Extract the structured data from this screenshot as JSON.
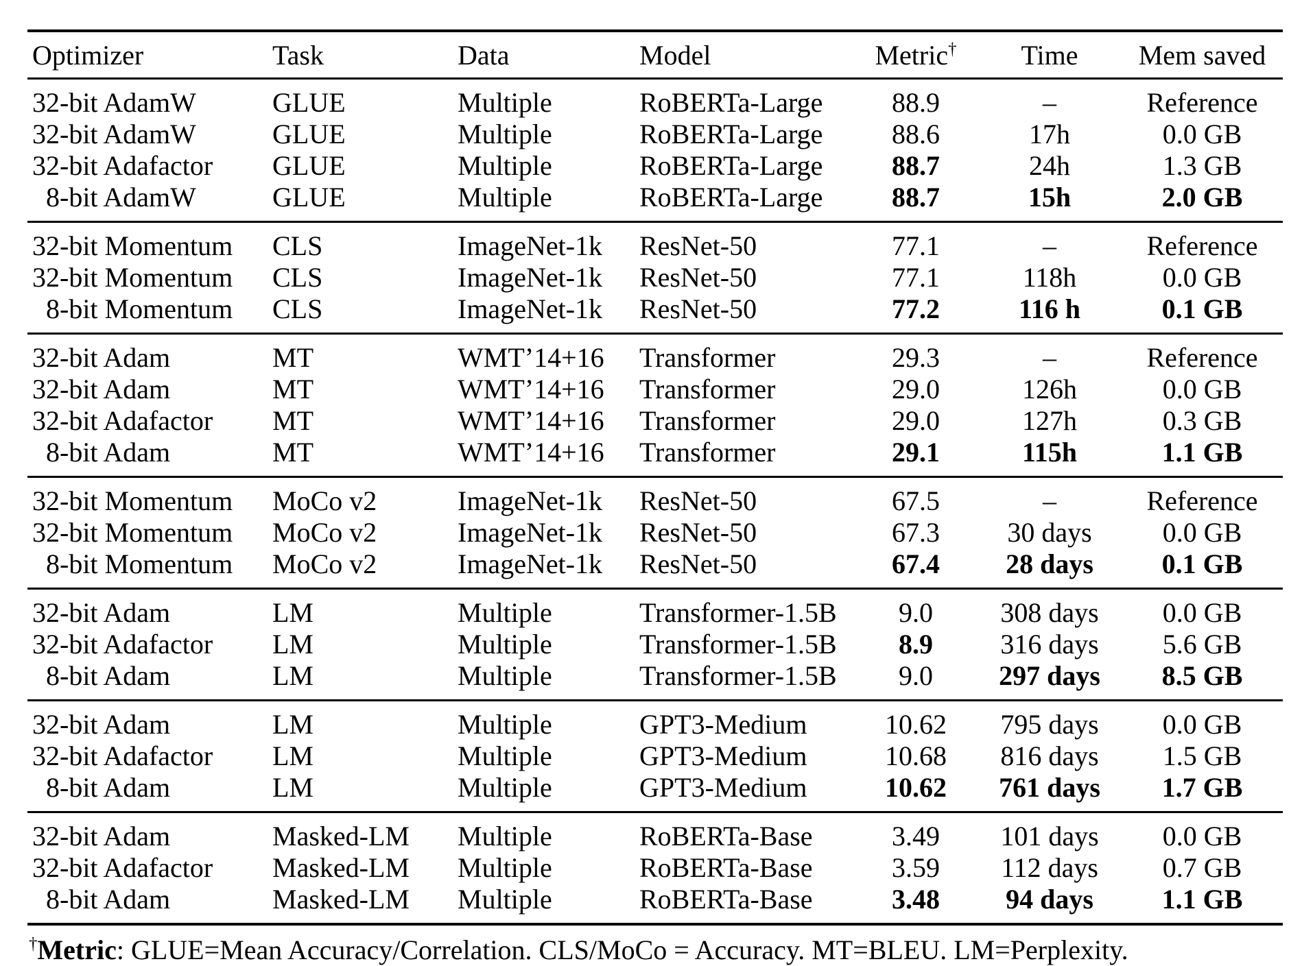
{
  "table": {
    "columns": [
      {
        "key": "optimizer",
        "label": "Optimizer",
        "align": "left"
      },
      {
        "key": "task",
        "label": "Task",
        "align": "left"
      },
      {
        "key": "data",
        "label": "Data",
        "align": "left"
      },
      {
        "key": "model",
        "label": "Model",
        "align": "left"
      },
      {
        "key": "metric",
        "label": "Metric",
        "superscript": "†",
        "align": "center"
      },
      {
        "key": "time",
        "label": "Time",
        "align": "center"
      },
      {
        "key": "mem-saved",
        "label": "Mem saved",
        "align": "center"
      }
    ],
    "groups": [
      {
        "rows": [
          [
            "32-bit AdamW",
            "GLUE",
            "Multiple",
            "RoBERTa-Large",
            "88.9",
            "–",
            "Reference"
          ],
          [
            "32-bit AdamW",
            "GLUE",
            "Multiple",
            "RoBERTa-Large",
            "88.6",
            "17h",
            "0.0 GB"
          ],
          [
            "32-bit Adafactor",
            "GLUE",
            "Multiple",
            "RoBERTa-Large",
            {
              "text": "88.7",
              "bold": true
            },
            "24h",
            "1.3 GB"
          ],
          [
            "8-bit AdamW",
            "GLUE",
            "Multiple",
            "RoBERTa-Large",
            {
              "text": "88.7",
              "bold": true
            },
            {
              "text": "15h",
              "bold": true
            },
            {
              "text": "2.0 GB",
              "bold": true
            }
          ]
        ]
      },
      {
        "rows": [
          [
            "32-bit Momentum",
            "CLS",
            "ImageNet-1k",
            "ResNet-50",
            "77.1",
            "–",
            "Reference"
          ],
          [
            "32-bit Momentum",
            "CLS",
            "ImageNet-1k",
            "ResNet-50",
            "77.1",
            "118h",
            "0.0 GB"
          ],
          [
            "8-bit Momentum",
            "CLS",
            "ImageNet-1k",
            "ResNet-50",
            {
              "text": "77.2",
              "bold": true
            },
            {
              "text": "116 h",
              "bold": true
            },
            {
              "text": "0.1 GB",
              "bold": true
            }
          ]
        ]
      },
      {
        "rows": [
          [
            "32-bit Adam",
            "MT",
            "WMT’14+16",
            "Transformer",
            "29.3",
            "–",
            "Reference"
          ],
          [
            "32-bit Adam",
            "MT",
            "WMT’14+16",
            "Transformer",
            "29.0",
            "126h",
            "0.0 GB"
          ],
          [
            "32-bit Adafactor",
            "MT",
            "WMT’14+16",
            "Transformer",
            "29.0",
            "127h",
            "0.3 GB"
          ],
          [
            "8-bit Adam",
            "MT",
            "WMT’14+16",
            "Transformer",
            {
              "text": "29.1",
              "bold": true
            },
            {
              "text": "115h",
              "bold": true
            },
            {
              "text": "1.1 GB",
              "bold": true
            }
          ]
        ]
      },
      {
        "rows": [
          [
            "32-bit Momentum",
            "MoCo v2",
            "ImageNet-1k",
            "ResNet-50",
            "67.5",
            "–",
            "Reference"
          ],
          [
            "32-bit Momentum",
            "MoCo v2",
            "ImageNet-1k",
            "ResNet-50",
            "67.3",
            "30 days",
            "0.0 GB"
          ],
          [
            "8-bit Momentum",
            "MoCo v2",
            "ImageNet-1k",
            "ResNet-50",
            {
              "text": "67.4",
              "bold": true
            },
            {
              "text": "28 days",
              "bold": true
            },
            {
              "text": "0.1 GB",
              "bold": true
            }
          ]
        ]
      },
      {
        "rows": [
          [
            "32-bit Adam",
            "LM",
            "Multiple",
            "Transformer-1.5B",
            "9.0",
            "308 days",
            "0.0 GB"
          ],
          [
            "32-bit Adafactor",
            "LM",
            "Multiple",
            "Transformer-1.5B",
            {
              "text": "8.9",
              "bold": true
            },
            "316 days",
            "5.6 GB"
          ],
          [
            "8-bit Adam",
            "LM",
            "Multiple",
            "Transformer-1.5B",
            "9.0",
            {
              "text": "297 days",
              "bold": true
            },
            {
              "text": "8.5 GB",
              "bold": true
            }
          ]
        ]
      },
      {
        "rows": [
          [
            "32-bit Adam",
            "LM",
            "Multiple",
            "GPT3-Medium",
            "10.62",
            "795 days",
            "0.0 GB"
          ],
          [
            "32-bit Adafactor",
            "LM",
            "Multiple",
            "GPT3-Medium",
            "10.68",
            "816 days",
            "1.5 GB"
          ],
          [
            "8-bit Adam",
            "LM",
            "Multiple",
            "GPT3-Medium",
            {
              "text": "10.62",
              "bold": true
            },
            {
              "text": "761 days",
              "bold": true
            },
            {
              "text": "1.7 GB",
              "bold": true
            }
          ]
        ]
      },
      {
        "rows": [
          [
            "32-bit Adam",
            "Masked-LM",
            "Multiple",
            "RoBERTa-Base",
            "3.49",
            "101 days",
            "0.0 GB"
          ],
          [
            "32-bit Adafactor",
            "Masked-LM",
            "Multiple",
            "RoBERTa-Base",
            "3.59",
            "112 days",
            "0.7 GB"
          ],
          [
            "8-bit Adam",
            "Masked-LM",
            "Multiple",
            "RoBERTa-Base",
            {
              "text": "3.48",
              "bold": true
            },
            {
              "text": "94 days",
              "bold": true
            },
            {
              "text": "1.1 GB",
              "bold": true
            }
          ]
        ]
      }
    ]
  },
  "footnote": {
    "dagger": "†",
    "label": "Metric",
    "text": ": GLUE=Mean Accuracy/Correlation. CLS/MoCo = Accuracy. MT=BLEU. LM=Perplexity."
  },
  "colors": {
    "text": "#000000",
    "background": "#ffffff",
    "rule": "#000000"
  }
}
